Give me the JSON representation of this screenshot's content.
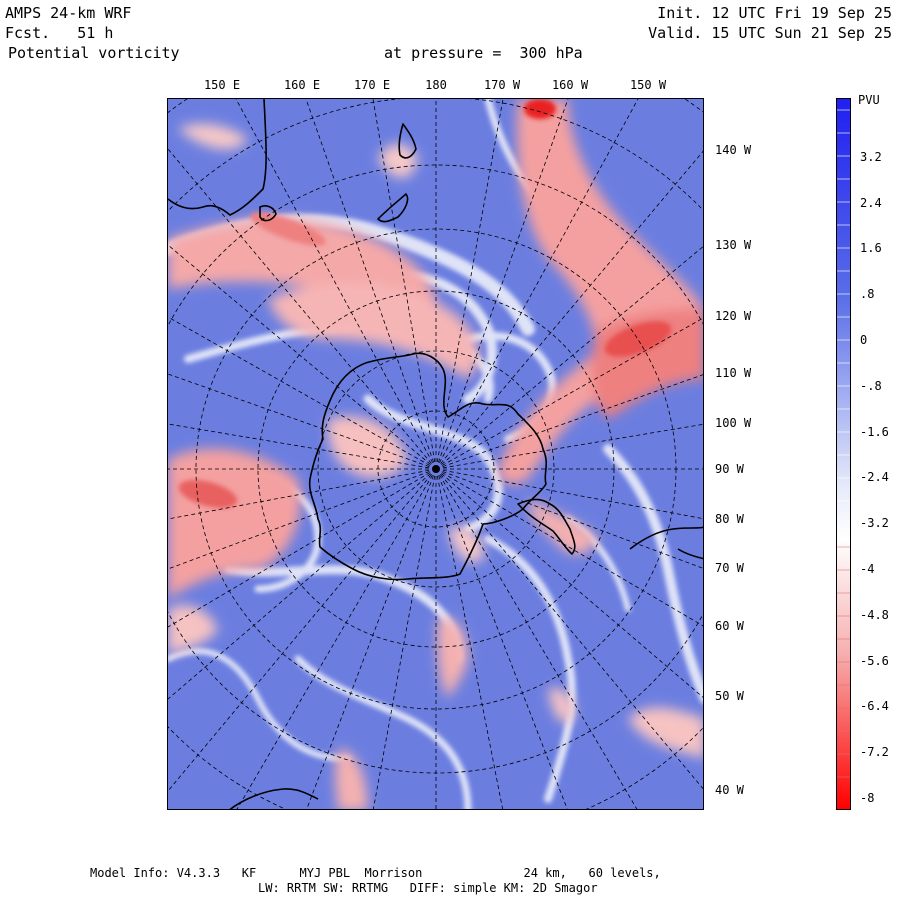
{
  "header": {
    "model": "AMPS 24-km WRF",
    "forecast": "Fcst.   51 h",
    "field": "Potential vorticity",
    "pressure": "at pressure =  300 hPa",
    "init": "Init. 12 UTC Fri 19 Sep 25",
    "valid": "Valid. 15 UTC Sun 21 Sep 25"
  },
  "lon_labels": [
    "150 E",
    "160 E",
    "170 E",
    "180",
    "170 W",
    "160 W",
    "150 W"
  ],
  "lat_labels": [
    "140 W",
    "130 W",
    "120 W",
    "110 W",
    "100 W",
    "90 W",
    "80 W",
    "70 W",
    "60 W",
    "50 W",
    "40 W"
  ],
  "colorbar": {
    "unit": "PVU",
    "labels": [
      "3.2",
      "2.4",
      "1.6",
      ".8",
      "0",
      "-.8",
      "-1.6",
      "-2.4",
      "-3.2",
      "-4",
      "-4.8",
      "-5.6",
      "-6.4",
      "-7.2",
      "-8"
    ],
    "levels": [
      4,
      -8
    ],
    "colors": {
      "positive": "#3040e8",
      "zero": "#ffffff",
      "negative": "#ff0000",
      "field_base": "#6b7ee0"
    }
  },
  "footer": {
    "line1": "Model Info: V4.3.3   KF      MYJ PBL  Morrison              24 km,   60 levels,",
    "line2": "LW: RRTM SW: RRTMG   DIFF: simple KM: 2D Smagor"
  }
}
